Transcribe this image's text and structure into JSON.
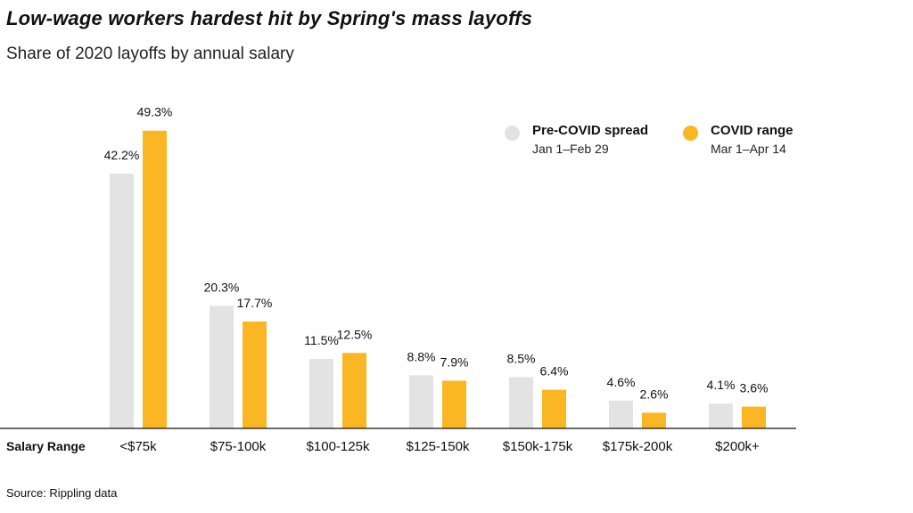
{
  "header": {
    "title": "Low-wage workers hardest hit by Spring's mass layoffs",
    "subtitle": "Share of 2020 layoffs by annual salary"
  },
  "footer": {
    "source": "Source: Rippling data"
  },
  "chart_data": {
    "type": "bar",
    "xlabel": "Salary Range",
    "ylabel": "",
    "categories": [
      "<$75k",
      "$75-100k",
      "$100-125k",
      "$125-150k",
      "$150k-175k",
      "$175k-200k",
      "$200k+"
    ],
    "series": [
      {
        "name": "Pre-COVID spread",
        "date_range": "Jan 1–Feb 29",
        "color": "#e3e3e3",
        "values": [
          42.2,
          20.3,
          11.5,
          8.8,
          8.5,
          4.6,
          4.1
        ],
        "labels": [
          "42.2%",
          "20.3%",
          "11.5%",
          "8.8%",
          "8.5%",
          "4.6%",
          "4.1%"
        ]
      },
      {
        "name": "COVID range",
        "date_range": "Mar 1–Apr 14",
        "color": "#fbb623",
        "values": [
          49.3,
          17.7,
          12.5,
          7.9,
          6.4,
          2.6,
          3.6
        ],
        "labels": [
          "49.3%",
          "17.7%",
          "12.5%",
          "7.9%",
          "6.4%",
          "2.6%",
          "3.6%"
        ]
      }
    ],
    "ylim": [
      0,
      50
    ],
    "unit": "%",
    "grid": false,
    "legend_position": "top-right"
  }
}
